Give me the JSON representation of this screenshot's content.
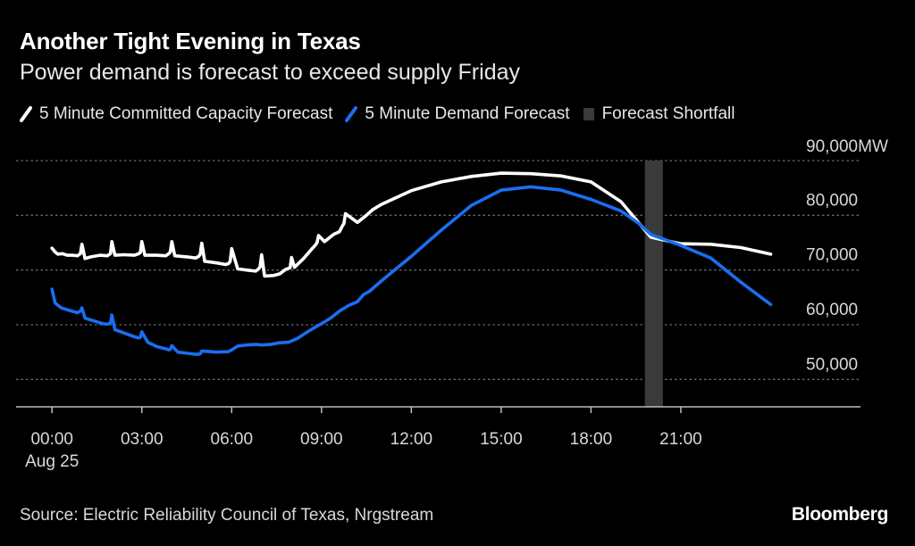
{
  "title": "Another Tight Evening in Texas",
  "subtitle": "Power demand is forecast to exceed supply Friday",
  "source": "Source: Electric Reliability Council of Texas, Nrgstream",
  "brand": "Bloomberg",
  "colors": {
    "capacity": "#ffffff",
    "demand": "#1a6ef0",
    "shortfall": "#3a3a3a",
    "grid": "#6a6a6a"
  },
  "chart_data": {
    "type": "line",
    "title": "Another Tight Evening in Texas",
    "ylabel": "MW",
    "ylim": [
      45000,
      90000
    ],
    "xlim": [
      -1.2,
      27
    ],
    "legend_position": "top-left",
    "legend": [
      "5 Minute Committed Capacity Forecast",
      "5 Minute Demand Forecast",
      "Forecast Shortfall"
    ],
    "y_ticks": [
      {
        "value": 90000,
        "label": "90,000MW"
      },
      {
        "value": 80000,
        "label": "80,000"
      },
      {
        "value": 70000,
        "label": "70,000"
      },
      {
        "value": 60000,
        "label": "60,000"
      },
      {
        "value": 50000,
        "label": "50,000"
      }
    ],
    "x_ticks": [
      {
        "value": 0,
        "label": "00:00",
        "sublabel": "Aug 25"
      },
      {
        "value": 3,
        "label": "03:00"
      },
      {
        "value": 6,
        "label": "06:00"
      },
      {
        "value": 9,
        "label": "09:00"
      },
      {
        "value": 12,
        "label": "12:00"
      },
      {
        "value": 15,
        "label": "15:00"
      },
      {
        "value": 18,
        "label": "18:00"
      },
      {
        "value": 21,
        "label": "21:00"
      }
    ],
    "shortfall": {
      "start": 19.8,
      "end": 20.4
    },
    "series": [
      {
        "name": "5 Minute Committed Capacity Forecast",
        "x": [
          0,
          0.1,
          0.2,
          0.35,
          0.5,
          0.7,
          0.85,
          0.95,
          1.0,
          1.1,
          1.3,
          1.6,
          1.85,
          1.95,
          2.0,
          2.1,
          2.4,
          2.75,
          2.9,
          2.95,
          3.0,
          3.1,
          3.5,
          3.8,
          3.9,
          3.95,
          4.0,
          4.1,
          4.5,
          4.8,
          4.9,
          4.95,
          5.0,
          5.1,
          5.5,
          5.8,
          5.9,
          5.95,
          6.0,
          6.2,
          6.5,
          6.8,
          6.9,
          6.95,
          7.0,
          7.1,
          7.4,
          7.6,
          7.8,
          7.95,
          8.0,
          8.1,
          8.4,
          8.7,
          8.8,
          8.85,
          8.9,
          9.1,
          9.4,
          9.6,
          9.7,
          9.75,
          9.8,
          10.2,
          10.5,
          10.7,
          11.0,
          12.0,
          13.0,
          14.0,
          15.0,
          16.0,
          17.0,
          18.0,
          19.0,
          20.0,
          21.0,
          22.0,
          23.0,
          24.0
        ],
        "values": [
          74000,
          73300,
          72900,
          73000,
          72700,
          72700,
          72600,
          73000,
          74700,
          72100,
          72400,
          72700,
          72600,
          73000,
          75200,
          72700,
          72800,
          72700,
          73000,
          73200,
          75200,
          72700,
          72700,
          72600,
          73000,
          73300,
          75200,
          72600,
          72400,
          72200,
          72500,
          72900,
          74900,
          71600,
          71300,
          71000,
          71200,
          71600,
          73900,
          70200,
          70000,
          69800,
          70200,
          70600,
          72800,
          68900,
          69000,
          69300,
          70100,
          70400,
          72300,
          70500,
          72100,
          74000,
          74600,
          75000,
          76300,
          75200,
          76500,
          77000,
          78100,
          78500,
          80300,
          78700,
          80000,
          81000,
          82000,
          84500,
          86100,
          87100,
          87700,
          87600,
          87200,
          86100,
          82500,
          76000,
          74800,
          74700,
          74100,
          72900
        ]
      },
      {
        "name": "5 Minute Demand Forecast",
        "x": [
          0,
          0.1,
          0.3,
          0.6,
          0.85,
          0.95,
          1.0,
          1.1,
          1.4,
          1.7,
          1.85,
          1.95,
          2.0,
          2.1,
          2.4,
          2.75,
          2.9,
          2.95,
          3.0,
          3.2,
          3.5,
          3.8,
          3.9,
          3.95,
          4.0,
          4.2,
          4.5,
          4.8,
          4.9,
          4.95,
          5.0,
          5.5,
          5.9,
          6.0,
          6.2,
          6.5,
          6.8,
          7.0,
          7.3,
          7.6,
          7.9,
          8.2,
          8.5,
          8.8,
          9.0,
          9.3,
          9.6,
          9.9,
          10.2,
          10.4,
          10.6,
          11.0,
          12.0,
          13.0,
          14.0,
          15.0,
          16.0,
          17.0,
          18.0,
          19.0,
          19.6,
          20.0,
          21.0,
          22.0,
          23.0,
          24.0
        ],
        "values": [
          66500,
          64000,
          63100,
          62600,
          62200,
          62500,
          63100,
          61200,
          60700,
          60200,
          60100,
          60300,
          61800,
          59100,
          58500,
          57800,
          57600,
          57700,
          58700,
          56800,
          56000,
          55600,
          55400,
          55500,
          56200,
          55000,
          54800,
          54600,
          54600,
          54700,
          55200,
          55000,
          55100,
          55400,
          56100,
          56300,
          56400,
          56300,
          56400,
          56700,
          56800,
          57500,
          58600,
          59600,
          60200,
          61200,
          62500,
          63500,
          64200,
          65500,
          66100,
          68000,
          72500,
          77300,
          81800,
          84600,
          85200,
          84600,
          82900,
          80800,
          78500,
          76500,
          74500,
          72200,
          67800,
          63700
        ]
      }
    ]
  }
}
